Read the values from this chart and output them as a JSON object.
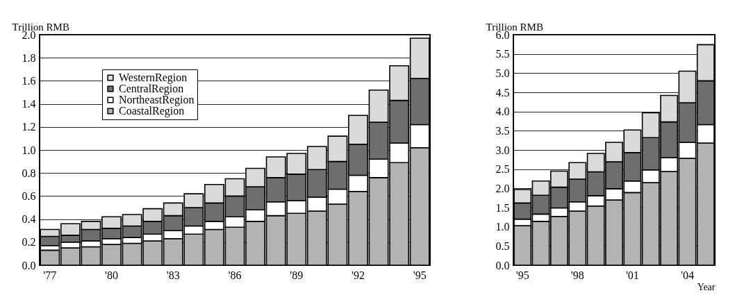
{
  "chart_data": [
    {
      "type": "bar",
      "stacked": true,
      "ylabel": "Trillion RMB",
      "legend": "top left",
      "grid": "y",
      "categories": [
        "'77",
        null,
        null,
        "'80",
        null,
        null,
        "'83",
        null,
        null,
        "'86",
        null,
        null,
        "'89",
        null,
        null,
        "'92",
        null,
        null,
        "'95"
      ],
      "ylim": [
        0,
        2
      ],
      "yticks": [
        {
          "value": 0,
          "label": "0.0"
        },
        0.2,
        0.4,
        0.6,
        0.8,
        {
          "value": 1,
          "label": "1.0"
        },
        1.2,
        1.4,
        1.6,
        1.8,
        {
          "value": 2,
          "label": "2.0"
        }
      ],
      "series": [
        {
          "name": "CoastalRegion",
          "color": "#b3b3b3",
          "values": [
            0.13,
            0.15,
            0.16,
            0.18,
            0.19,
            0.21,
            0.23,
            0.27,
            0.31,
            0.33,
            0.38,
            0.43,
            0.45,
            0.47,
            0.53,
            0.64,
            0.76,
            0.89,
            1.02
          ]
        },
        {
          "name": "NortheastRegion",
          "color": "#ffffff",
          "values": [
            0.04,
            0.05,
            0.05,
            0.05,
            0.05,
            0.06,
            0.07,
            0.07,
            0.07,
            0.09,
            0.1,
            0.12,
            0.11,
            0.12,
            0.13,
            0.14,
            0.16,
            0.17,
            0.2
          ]
        },
        {
          "name": "CentralRegion",
          "color": "#6e6e6e",
          "values": [
            0.08,
            0.06,
            0.1,
            0.09,
            0.1,
            0.11,
            0.13,
            0.16,
            0.16,
            0.18,
            0.2,
            0.21,
            0.23,
            0.24,
            0.24,
            0.27,
            0.32,
            0.37,
            0.4
          ]
        },
        {
          "name": "WesternRegion",
          "color": "#dadada",
          "values": [
            0.06,
            0.1,
            0.07,
            0.1,
            0.1,
            0.11,
            0.11,
            0.12,
            0.16,
            0.15,
            0.16,
            0.18,
            0.18,
            0.2,
            0.22,
            0.25,
            0.28,
            0.3,
            0.35
          ]
        }
      ]
    },
    {
      "type": "bar",
      "stacked": true,
      "ylabel": "Trillion RMB",
      "xlabel": "Year",
      "grid": "y",
      "categories": [
        "'95",
        null,
        null,
        "'98",
        null,
        null,
        "'01",
        null,
        null,
        "'04",
        null
      ],
      "ylim": [
        0,
        6
      ],
      "yticks": [
        {
          "value": 0,
          "label": "0.0"
        },
        0.5,
        {
          "value": 1,
          "label": "1.0"
        },
        1.5,
        {
          "value": 2,
          "label": "2.0"
        },
        2.5,
        {
          "value": 3,
          "label": "3.0"
        },
        3.5,
        {
          "value": 4,
          "label": "4.0"
        },
        4.5,
        {
          "value": 5,
          "label": "5.0"
        },
        5.5,
        {
          "value": 6,
          "label": "6.0"
        }
      ],
      "series": [
        {
          "color": "#b3b3b3",
          "values": [
            1.03,
            1.14,
            1.27,
            1.41,
            1.54,
            1.7,
            1.89,
            2.15,
            2.44,
            2.78,
            3.18
          ]
        },
        {
          "color": "#ffffff",
          "values": [
            0.17,
            0.19,
            0.22,
            0.24,
            0.27,
            0.29,
            0.3,
            0.33,
            0.36,
            0.42,
            0.48
          ]
        },
        {
          "color": "#6e6e6e",
          "values": [
            0.42,
            0.49,
            0.54,
            0.59,
            0.62,
            0.7,
            0.74,
            0.84,
            0.93,
            1.03,
            1.14
          ]
        },
        {
          "color": "#dadada",
          "values": [
            0.35,
            0.37,
            0.42,
            0.43,
            0.48,
            0.51,
            0.59,
            0.65,
            0.69,
            0.82,
            0.94
          ]
        }
      ]
    }
  ]
}
